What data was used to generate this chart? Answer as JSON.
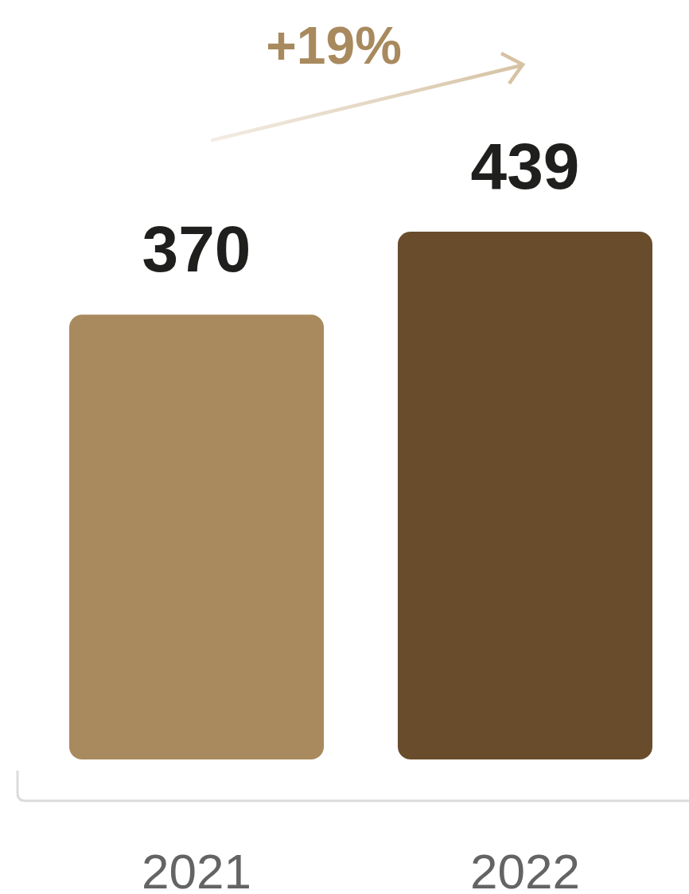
{
  "chart_data": {
    "type": "bar",
    "categories": [
      "2021",
      "2022"
    ],
    "values": [
      370,
      439
    ],
    "colors": [
      "#a98a5e",
      "#684c2c"
    ],
    "data_labels": true,
    "annotations": [
      "+19%"
    ]
  }
}
